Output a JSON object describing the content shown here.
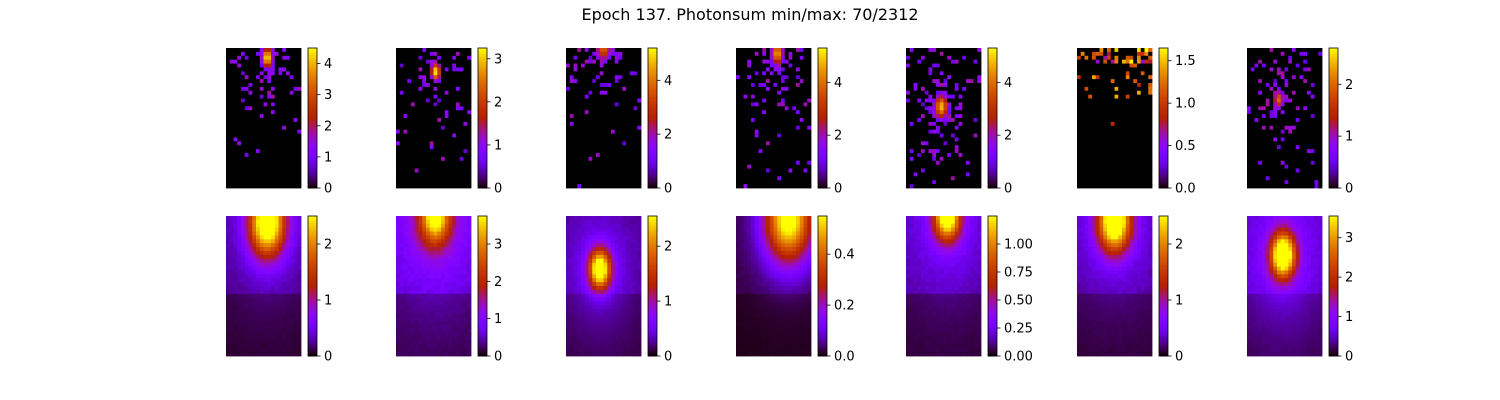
{
  "figure_title": "Epoch 137. Photonsum min/max: 70/2312",
  "colormap": "gnuplot",
  "background": "#ffffff",
  "chart_data": [
    {
      "type": "heatmap",
      "row": "top",
      "col": 1,
      "colorbar": {
        "min": 0,
        "max": 4.5,
        "ticks": [
          0,
          1,
          2,
          3,
          4
        ]
      },
      "pattern": "sparse",
      "spot": {
        "x": 0.55,
        "y": 0.07,
        "peak": 4.5,
        "sigma": 0.09
      },
      "density": 0.55
    },
    {
      "type": "heatmap",
      "row": "top",
      "col": 2,
      "colorbar": {
        "min": 0,
        "max": 3.25,
        "ticks": [
          0,
          1,
          2,
          3
        ]
      },
      "pattern": "sparse",
      "spot": {
        "x": 0.53,
        "y": 0.17,
        "peak": 3.2,
        "sigma": 0.08
      },
      "density": 0.3
    },
    {
      "type": "heatmap",
      "row": "top",
      "col": 3,
      "colorbar": {
        "min": 0,
        "max": 5.2,
        "ticks": [
          0,
          2,
          4
        ]
      },
      "pattern": "sparse",
      "spot": {
        "x": 0.5,
        "y": 0.0,
        "peak": 3.8,
        "sigma": 0.12
      },
      "density": 0.7
    },
    {
      "type": "heatmap",
      "row": "top",
      "col": 4,
      "colorbar": {
        "min": 0,
        "max": 5.3,
        "ticks": [
          0,
          2,
          4
        ]
      },
      "pattern": "sparse",
      "spot": {
        "x": 0.55,
        "y": 0.04,
        "peak": 4.6,
        "sigma": 0.1
      },
      "density": 0.6
    },
    {
      "type": "heatmap",
      "row": "top",
      "col": 5,
      "colorbar": {
        "min": 0,
        "max": 5.3,
        "ticks": [
          0,
          2,
          4
        ]
      },
      "pattern": "sparse",
      "spot": {
        "x": 0.47,
        "y": 0.42,
        "peak": 4.8,
        "sigma": 0.11
      },
      "density": 0.55
    },
    {
      "type": "heatmap",
      "row": "top",
      "col": 6,
      "colorbar": {
        "min": 0,
        "max": 1.65,
        "ticks": [
          0.0,
          0.5,
          1.0,
          1.5
        ],
        "tick_decimals": 1
      },
      "pattern": "edge",
      "density": 0.35
    },
    {
      "type": "heatmap",
      "row": "top",
      "col": 7,
      "colorbar": {
        "min": 0,
        "max": 2.7,
        "ticks": [
          0,
          1,
          2
        ]
      },
      "pattern": "sparse",
      "spot": {
        "x": 0.42,
        "y": 0.37,
        "peak": 2.0,
        "sigma": 0.08
      },
      "density": 0.35
    },
    {
      "type": "heatmap",
      "row": "bottom",
      "col": 1,
      "colorbar": {
        "min": 0,
        "max": 2.5,
        "ticks": [
          0,
          1,
          2
        ]
      },
      "pattern": "smooth",
      "spot": {
        "x": 0.55,
        "y": 0.05,
        "peak": 2.4,
        "sigma": 0.17
      },
      "bg": 0.25
    },
    {
      "type": "heatmap",
      "row": "bottom",
      "col": 2,
      "colorbar": {
        "min": 0,
        "max": 3.75,
        "ticks": [
          0,
          1,
          2,
          3
        ]
      },
      "pattern": "smooth",
      "spot": {
        "x": 0.52,
        "y": 0.0,
        "peak": 2.4,
        "sigma": 0.14
      },
      "bg": 0.45
    },
    {
      "type": "heatmap",
      "row": "bottom",
      "col": 3,
      "colorbar": {
        "min": 0,
        "max": 2.55,
        "ticks": [
          0,
          1,
          2
        ]
      },
      "pattern": "smooth",
      "spot": {
        "x": 0.45,
        "y": 0.38,
        "peak": 2.4,
        "sigma": 0.1
      },
      "bg": 0.25
    },
    {
      "type": "heatmap",
      "row": "bottom",
      "col": 4,
      "colorbar": {
        "min": 0,
        "max": 0.55,
        "ticks": [
          0.0,
          0.2,
          0.4
        ],
        "tick_decimals": 1
      },
      "pattern": "smooth",
      "spot": {
        "x": 0.7,
        "y": 0.02,
        "peak": 0.52,
        "sigma": 0.22
      },
      "bg": 0.14
    },
    {
      "type": "heatmap",
      "row": "bottom",
      "col": 5,
      "colorbar": {
        "min": 0,
        "max": 1.25,
        "ticks": [
          0.0,
          0.25,
          0.5,
          0.75,
          1.0
        ],
        "tick_decimals": 2
      },
      "pattern": "smooth",
      "spot": {
        "x": 0.55,
        "y": 0.0,
        "peak": 1.1,
        "sigma": 0.12
      },
      "bg": 0.32
    },
    {
      "type": "heatmap",
      "row": "bottom",
      "col": 6,
      "colorbar": {
        "min": 0,
        "max": 2.5,
        "ticks": [
          0,
          1,
          2
        ]
      },
      "pattern": "smooth",
      "spot": {
        "x": 0.5,
        "y": 0.04,
        "peak": 2.4,
        "sigma": 0.15
      },
      "bg": 0.3
    },
    {
      "type": "heatmap",
      "row": "bottom",
      "col": 7,
      "colorbar": {
        "min": 0,
        "max": 3.55,
        "ticks": [
          0,
          1,
          2,
          3
        ]
      },
      "pattern": "smooth",
      "spot": {
        "x": 0.48,
        "y": 0.28,
        "peak": 3.4,
        "sigma": 0.11
      },
      "bg": 0.35
    }
  ]
}
